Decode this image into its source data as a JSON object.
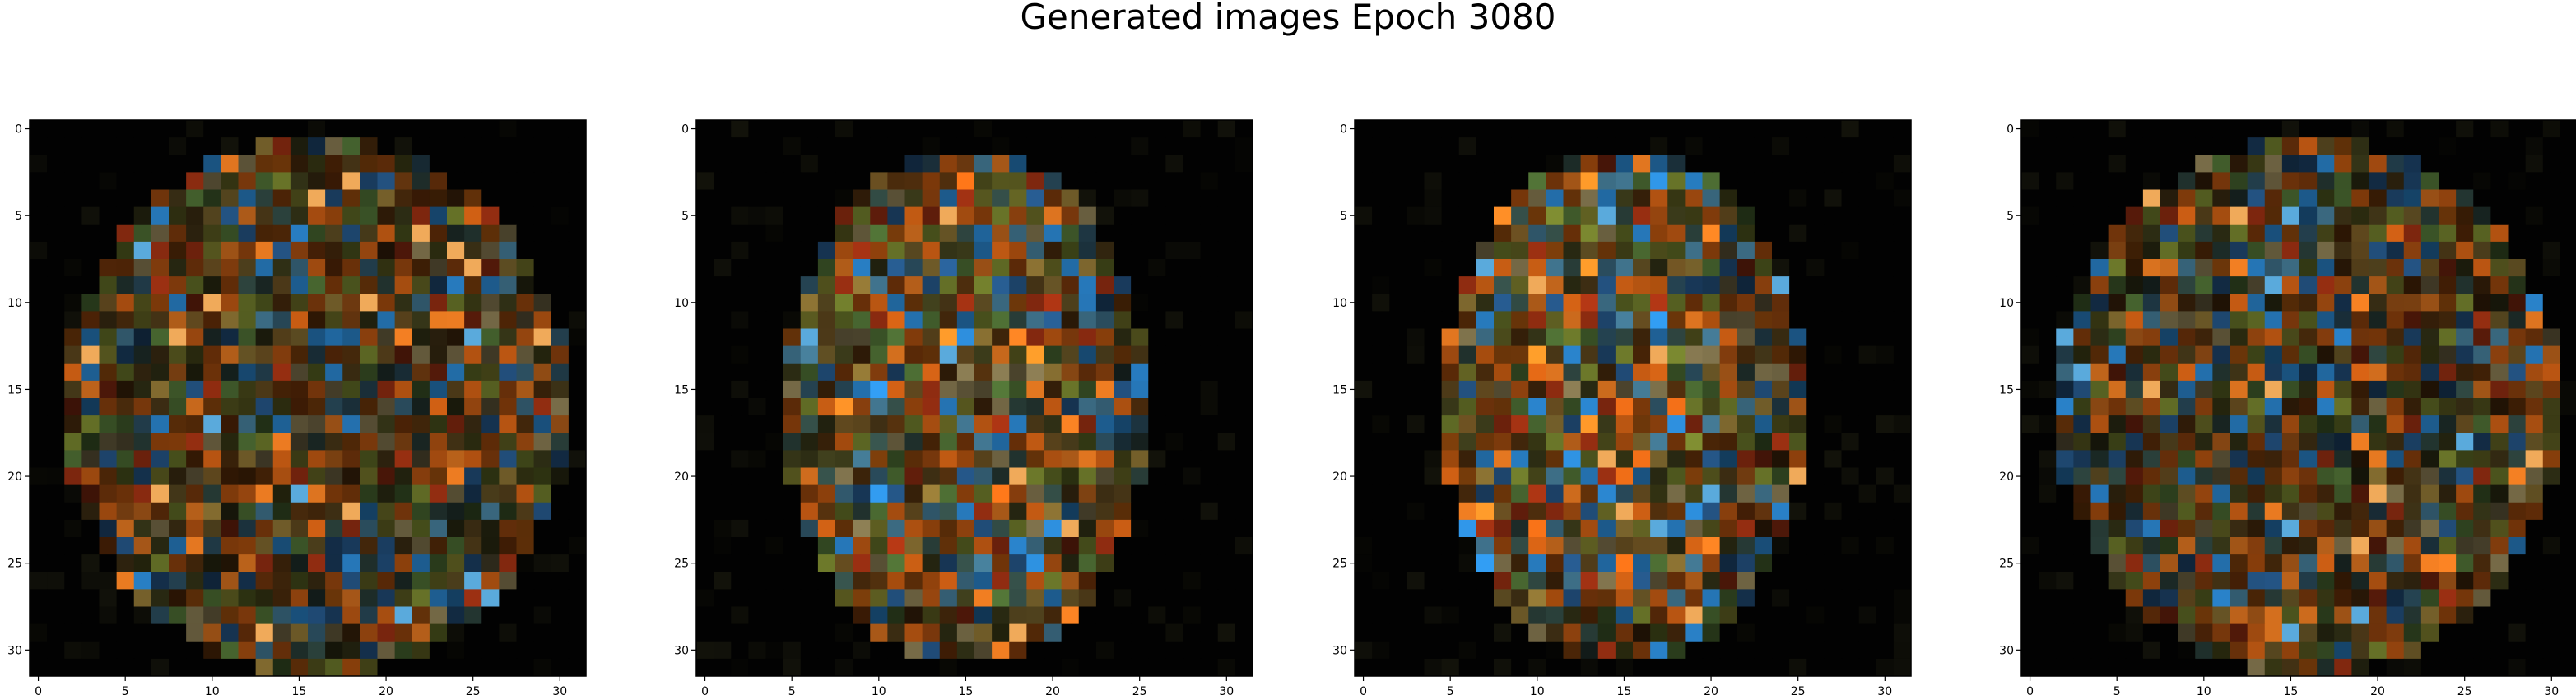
{
  "figure": {
    "title": "Generated images Epoch 3080"
  },
  "panels": [
    {
      "id": "image-1",
      "x_ticks": [
        "0",
        "5",
        "10",
        "15",
        "20",
        "25",
        "30"
      ],
      "y_ticks": [
        "0",
        "5",
        "10",
        "15",
        "20",
        "25",
        "30"
      ],
      "image_grid_size": 32,
      "variant": 1
    },
    {
      "id": "image-2",
      "x_ticks": [
        "0",
        "5",
        "10",
        "15",
        "20",
        "25",
        "30"
      ],
      "y_ticks": [
        "0",
        "5",
        "10",
        "15",
        "20",
        "25",
        "30"
      ],
      "image_grid_size": 32,
      "variant": 2
    },
    {
      "id": "image-3",
      "x_ticks": [
        "0",
        "5",
        "10",
        "15",
        "20",
        "25",
        "30"
      ],
      "y_ticks": [
        "0",
        "5",
        "10",
        "15",
        "20",
        "25",
        "30"
      ],
      "image_grid_size": 32,
      "variant": 3
    },
    {
      "id": "image-4",
      "x_ticks": [
        "0",
        "5",
        "10",
        "15",
        "20",
        "25",
        "30"
      ],
      "y_ticks": [
        "0",
        "5",
        "10",
        "15",
        "20",
        "25",
        "30"
      ],
      "image_grid_size": 32,
      "variant": 4
    }
  ],
  "colors": {
    "background": "#000000",
    "axis": "#000000",
    "page": "#ffffff"
  }
}
